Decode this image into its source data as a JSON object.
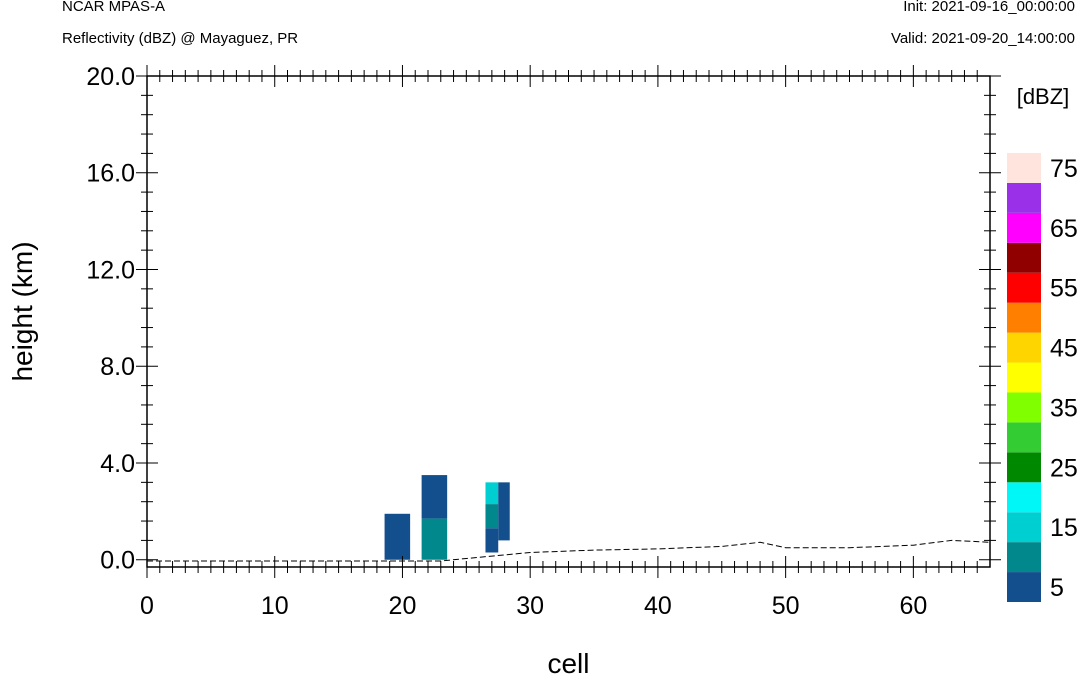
{
  "header": {
    "model": "NCAR MPAS-A",
    "field": "Reflectivity (dBZ) @ Mayaguez, PR",
    "init": "Init: 2021-09-16_00:00:00",
    "valid": "Valid: 2021-09-20_14:00:00"
  },
  "chart_data": {
    "type": "heatmap",
    "xlabel": "cell",
    "ylabel": "height (km)",
    "xlim": [
      0,
      66
    ],
    "ylim": [
      -0.3,
      20.0
    ],
    "xticks": [
      0,
      10,
      20,
      30,
      40,
      50,
      60
    ],
    "xtick_labels": [
      "0",
      "10",
      "20",
      "30",
      "40",
      "50",
      "60"
    ],
    "yticks": [
      0,
      4,
      8,
      12,
      16,
      20
    ],
    "ytick_labels": [
      "0.0",
      "4.0",
      "8.0",
      "12.0",
      "16.0",
      "20.0"
    ],
    "colorbar": {
      "unit_label": "[dBZ]",
      "levels": [
        5,
        10,
        15,
        20,
        25,
        30,
        35,
        40,
        45,
        50,
        55,
        60,
        65,
        70,
        75
      ],
      "colors": [
        "#124f8c",
        "#00888c",
        "#00cfd2",
        "#00f7f7",
        "#008800",
        "#33cc33",
        "#7fff00",
        "#ffff00",
        "#ffd500",
        "#ff8000",
        "#ff0000",
        "#900000",
        "#ff00ff",
        "#9a30e8",
        "#ffe4de"
      ],
      "tick_labels": [
        "5",
        "15",
        "25",
        "35",
        "45",
        "55",
        "65",
        "75"
      ]
    },
    "reflectivity_cells": [
      {
        "x0": 18.6,
        "x1": 20.6,
        "y0": 0.0,
        "y1": 1.9,
        "dbz": 5
      },
      {
        "x0": 21.5,
        "x1": 23.5,
        "y0": 1.7,
        "y1": 3.5,
        "dbz": 5
      },
      {
        "x0": 21.5,
        "x1": 23.5,
        "y0": 0.0,
        "y1": 1.7,
        "dbz": 10
      },
      {
        "x0": 26.5,
        "x1": 27.5,
        "y0": 2.3,
        "y1": 3.2,
        "dbz": 15
      },
      {
        "x0": 26.5,
        "x1": 27.5,
        "y0": 1.3,
        "y1": 2.3,
        "dbz": 10
      },
      {
        "x0": 26.5,
        "x1": 27.5,
        "y0": 0.3,
        "y1": 1.3,
        "dbz": 5
      },
      {
        "x0": 27.5,
        "x1": 28.4,
        "y0": 0.8,
        "y1": 3.2,
        "dbz": 5
      }
    ],
    "terrain": {
      "x": [
        0,
        17,
        23,
        25,
        27,
        30,
        35,
        40,
        45,
        48,
        50,
        55,
        60,
        63,
        65,
        66
      ],
      "y": [
        -0.05,
        -0.05,
        -0.05,
        0.05,
        0.15,
        0.3,
        0.4,
        0.45,
        0.55,
        0.72,
        0.5,
        0.5,
        0.6,
        0.8,
        0.75,
        0.72
      ]
    }
  }
}
